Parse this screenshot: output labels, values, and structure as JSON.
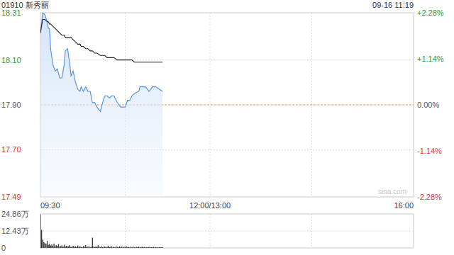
{
  "chart_data": [
    {
      "type": "line",
      "title": "01910 新秀丽",
      "subtitle": "09-16 11:19",
      "annotations": [
        "sina.com"
      ],
      "x": [
        0,
        2,
        4,
        6,
        7,
        8,
        9,
        11,
        13,
        15,
        17,
        19,
        21,
        22,
        24,
        26,
        27,
        29,
        31,
        33,
        35,
        36,
        38,
        40,
        42,
        44,
        46,
        48,
        50,
        53,
        55,
        57,
        59,
        61,
        63,
        65,
        68,
        71,
        73,
        75,
        77,
        79,
        81,
        83,
        87,
        88,
        93,
        96,
        99,
        102,
        105,
        108
      ],
      "series": [
        {
          "type": "area",
          "color": "#4a8fe7",
          "values": [
            18.22,
            18.31,
            18.3,
            18.27,
            18.24,
            18.24,
            18.15,
            18.08,
            18.05,
            18.06,
            18.02,
            18.02,
            18.08,
            18.14,
            18.15,
            18.08,
            18.03,
            18.05,
            18.0,
            17.97,
            17.96,
            17.98,
            17.96,
            17.98,
            17.96,
            17.96,
            17.91,
            17.91,
            17.89,
            17.87,
            17.91,
            17.94,
            17.94,
            17.93,
            17.94,
            17.94,
            17.91,
            17.89,
            17.89,
            17.89,
            17.92,
            17.92,
            17.94,
            17.95,
            17.96,
            17.98,
            17.98,
            17.96,
            17.98,
            17.98,
            17.97,
            17.96
          ]
        },
        {
          "type": "line",
          "color": "#222222",
          "values": [
            18.22,
            18.28,
            18.28,
            18.27,
            18.27,
            18.26,
            18.26,
            18.25,
            18.24,
            18.23,
            18.22,
            18.21,
            18.21,
            18.2,
            18.2,
            18.2,
            18.2,
            18.19,
            18.18,
            18.17,
            18.17,
            18.16,
            18.16,
            18.15,
            18.15,
            18.14,
            18.14,
            18.13,
            18.13,
            18.12,
            18.12,
            18.12,
            18.11,
            18.11,
            18.11,
            18.11,
            18.1,
            18.1,
            18.1,
            18.1,
            18.1,
            18.1,
            18.1,
            18.09,
            18.09,
            18.09,
            18.09,
            18.09,
            18.09,
            18.09,
            18.09,
            18.09
          ]
        }
      ],
      "xlim": [
        0,
        330
      ],
      "xticks": [
        {
          "value": 0,
          "label": "09:30"
        },
        {
          "value": 75,
          "label": null
        },
        {
          "value": 150,
          "label": "12:00/13:00"
        },
        {
          "value": 240,
          "label": null
        },
        {
          "value": 330,
          "label": "16:00"
        }
      ],
      "ylim": [
        17.49,
        18.31
      ],
      "yticks": [
        18.31,
        {
          "value": 18.1,
          "label": "18.10"
        },
        {
          "value": 17.9,
          "label": "17.90"
        },
        {
          "value": 17.7,
          "label": "17.70"
        },
        17.49
      ],
      "y2lim": [
        -2.28,
        2.28
      ],
      "y2ticks": [
        {
          "value": 2.28,
          "label": "+2.28%"
        },
        {
          "value": 1.14,
          "label": "+1.14%"
        },
        {
          "value": 0,
          "label": "0.00%"
        },
        {
          "value": -1.14,
          "label": "-1.14%"
        },
        {
          "value": -2.28,
          "label": "-2.28%"
        }
      ],
      "grid": true
    },
    {
      "type": "bar",
      "color": "#333333",
      "x": [
        0,
        1,
        2,
        3,
        4,
        5,
        6,
        7,
        8,
        9,
        10,
        11,
        12,
        13,
        14,
        15,
        16,
        17,
        18,
        19,
        20,
        21,
        22,
        23,
        24,
        25,
        26,
        27,
        28,
        29,
        30,
        31,
        32,
        33,
        34,
        35,
        36,
        37,
        38,
        39,
        40,
        41,
        42,
        43,
        44,
        45,
        46,
        47,
        48,
        49,
        50,
        51,
        52,
        53,
        54,
        55,
        56,
        57,
        58,
        59,
        60,
        61,
        62,
        63,
        64,
        65,
        66,
        67,
        68,
        69,
        70,
        71,
        72,
        73,
        74,
        75,
        76,
        77,
        78,
        79,
        80,
        81,
        82,
        83,
        84,
        85,
        86,
        87,
        88,
        89,
        90,
        91,
        92,
        93,
        94,
        95,
        96,
        97,
        98,
        99,
        100,
        101,
        102,
        103,
        104,
        105,
        106,
        107,
        108
      ],
      "values": [
        24.5,
        13.2,
        6.1,
        4.2,
        3.5,
        2.8,
        5.1,
        2.2,
        3.0,
        1.8,
        2.5,
        1.6,
        3.2,
        1.2,
        2.0,
        1.5,
        2.8,
        1.0,
        1.4,
        1.9,
        0.8,
        2.3,
        1.1,
        1.6,
        0.9,
        1.3,
        2.0,
        0.7,
        1.0,
        1.5,
        0.8,
        1.2,
        0.6,
        1.8,
        0.9,
        1.1,
        0.7,
        0.5,
        1.4,
        0.8,
        2.1,
        0.6,
        0.9,
        1.2,
        0.5,
        0.8,
        7.5,
        1.0,
        0.6,
        1.1,
        0.7,
        2.0,
        0.9,
        0.5,
        1.3,
        0.6,
        0.8,
        1.0,
        0.4,
        0.9,
        1.6,
        0.5,
        0.7,
        1.1,
        0.6,
        0.8,
        0.4,
        1.0,
        0.7,
        0.5,
        1.2,
        0.6,
        0.9,
        0.4,
        0.8,
        0.5,
        1.0,
        0.6,
        0.7,
        0.4,
        0.9,
        0.5,
        0.8,
        0.6,
        0.4,
        0.7,
        0.5,
        0.9,
        0.4,
        0.6,
        0.8,
        0.5,
        0.7,
        0.4,
        0.6,
        0.5,
        0.8,
        0.4,
        0.6,
        0.5,
        0.7,
        0.4,
        0.6,
        0.5,
        0.4,
        0.6,
        0.5,
        0.4,
        0.5
      ],
      "xlim": [
        0,
        330
      ],
      "xticks": [
        0,
        75,
        150,
        240,
        330
      ],
      "ylim": [
        0,
        24.86
      ],
      "yticks": [
        {
          "value": 24.86,
          "label": "24.86万"
        },
        {
          "value": 12.43,
          "label": "12.43万"
        },
        0
      ],
      "tick_labels": "y",
      "grid": true
    }
  ]
}
